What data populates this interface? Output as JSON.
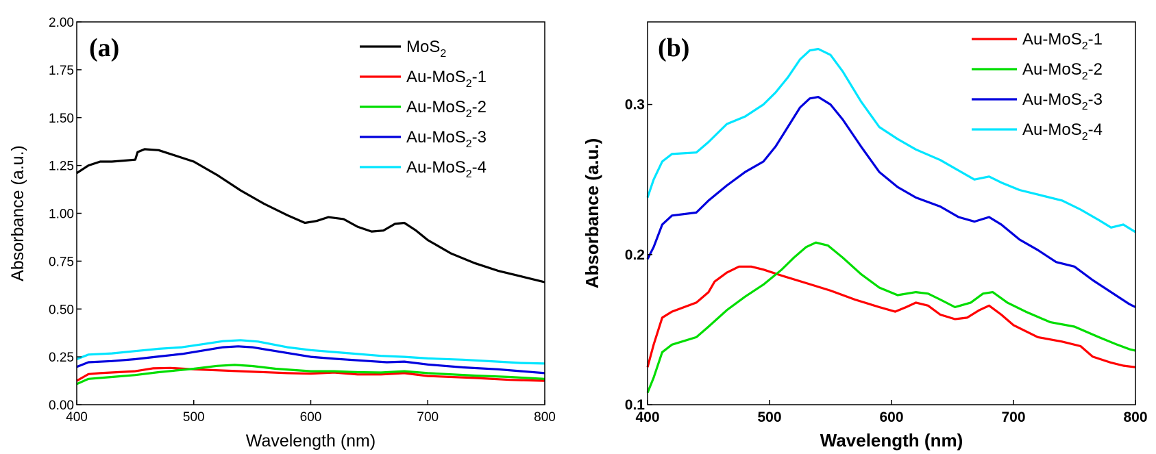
{
  "chart_data": [
    {
      "panel_label": "(a)",
      "type": "line",
      "xlabel": "Wavelength (nm)",
      "ylabel": "Absorbance (a.u.)",
      "xlim": [
        400,
        800
      ],
      "ylim": [
        0,
        2.0
      ],
      "x_ticks": [
        "400",
        "500",
        "600",
        "700",
        "800"
      ],
      "y_ticks": [
        "0.00",
        "0.25",
        "0.50",
        "0.75",
        "1.00",
        "1.25",
        "1.50",
        "1.75",
        "2.00"
      ],
      "legend_position": "top-right",
      "series": [
        {
          "name": "MoS",
          "sub": "2",
          "suffix": "",
          "color": "#000000",
          "points": [
            [
              400,
              1.21
            ],
            [
              410,
              1.25
            ],
            [
              420,
              1.27
            ],
            [
              430,
              1.27
            ],
            [
              440,
              1.275
            ],
            [
              450,
              1.28
            ],
            [
              452,
              1.32
            ],
            [
              458,
              1.335
            ],
            [
              470,
              1.33
            ],
            [
              485,
              1.3
            ],
            [
              500,
              1.27
            ],
            [
              520,
              1.2
            ],
            [
              540,
              1.12
            ],
            [
              560,
              1.05
            ],
            [
              580,
              0.99
            ],
            [
              595,
              0.95
            ],
            [
              605,
              0.96
            ],
            [
              615,
              0.98
            ],
            [
              628,
              0.97
            ],
            [
              640,
              0.93
            ],
            [
              652,
              0.905
            ],
            [
              662,
              0.91
            ],
            [
              672,
              0.945
            ],
            [
              680,
              0.95
            ],
            [
              690,
              0.91
            ],
            [
              700,
              0.86
            ],
            [
              720,
              0.79
            ],
            [
              740,
              0.74
            ],
            [
              760,
              0.7
            ],
            [
              780,
              0.67
            ],
            [
              800,
              0.64
            ]
          ]
        },
        {
          "name": "Au-MoS",
          "sub": "2",
          "suffix": "-1",
          "color": "#ff0000",
          "points": [
            [
              400,
              0.125
            ],
            [
              410,
              0.16
            ],
            [
              420,
              0.165
            ],
            [
              450,
              0.175
            ],
            [
              465,
              0.19
            ],
            [
              480,
              0.192
            ],
            [
              500,
              0.185
            ],
            [
              540,
              0.175
            ],
            [
              580,
              0.165
            ],
            [
              600,
              0.162
            ],
            [
              620,
              0.168
            ],
            [
              640,
              0.158
            ],
            [
              660,
              0.158
            ],
            [
              680,
              0.165
            ],
            [
              700,
              0.15
            ],
            [
              740,
              0.14
            ],
            [
              770,
              0.13
            ],
            [
              800,
              0.125
            ]
          ]
        },
        {
          "name": "Au-MoS",
          "sub": "2",
          "suffix": "-2",
          "color": "#00dd00",
          "points": [
            [
              400,
              0.108
            ],
            [
              410,
              0.135
            ],
            [
              430,
              0.145
            ],
            [
              450,
              0.155
            ],
            [
              470,
              0.17
            ],
            [
              500,
              0.188
            ],
            [
              520,
              0.203
            ],
            [
              535,
              0.208
            ],
            [
              550,
              0.202
            ],
            [
              570,
              0.188
            ],
            [
              600,
              0.175
            ],
            [
              620,
              0.175
            ],
            [
              640,
              0.17
            ],
            [
              660,
              0.168
            ],
            [
              680,
              0.175
            ],
            [
              700,
              0.165
            ],
            [
              740,
              0.152
            ],
            [
              770,
              0.145
            ],
            [
              800,
              0.135
            ]
          ]
        },
        {
          "name": "Au-MoS",
          "sub": "2",
          "suffix": "-3",
          "color": "#0000dd",
          "points": [
            [
              400,
              0.198
            ],
            [
              410,
              0.222
            ],
            [
              430,
              0.228
            ],
            [
              450,
              0.238
            ],
            [
              470,
              0.252
            ],
            [
              490,
              0.265
            ],
            [
              510,
              0.285
            ],
            [
              525,
              0.3
            ],
            [
              538,
              0.305
            ],
            [
              550,
              0.3
            ],
            [
              570,
              0.28
            ],
            [
              600,
              0.25
            ],
            [
              620,
              0.24
            ],
            [
              650,
              0.228
            ],
            [
              665,
              0.222
            ],
            [
              680,
              0.225
            ],
            [
              700,
              0.21
            ],
            [
              730,
              0.195
            ],
            [
              760,
              0.185
            ],
            [
              780,
              0.175
            ],
            [
              800,
              0.165
            ]
          ]
        },
        {
          "name": "Au-MoS",
          "sub": "2",
          "suffix": "-4",
          "color": "#00e5ff",
          "points": [
            [
              400,
              0.238
            ],
            [
              410,
              0.262
            ],
            [
              430,
              0.268
            ],
            [
              450,
              0.28
            ],
            [
              470,
              0.292
            ],
            [
              490,
              0.3
            ],
            [
              510,
              0.318
            ],
            [
              525,
              0.332
            ],
            [
              540,
              0.337
            ],
            [
              555,
              0.33
            ],
            [
              580,
              0.3
            ],
            [
              600,
              0.285
            ],
            [
              630,
              0.27
            ],
            [
              660,
              0.255
            ],
            [
              680,
              0.25
            ],
            [
              700,
              0.242
            ],
            [
              730,
              0.235
            ],
            [
              760,
              0.225
            ],
            [
              780,
              0.218
            ],
            [
              800,
              0.215
            ]
          ]
        }
      ]
    },
    {
      "panel_label": "(b)",
      "type": "line",
      "xlabel": "Wavelength (nm)",
      "ylabel": "Absorbance (a.u.)",
      "xlim": [
        400,
        800
      ],
      "ylim": [
        0.1,
        0.355
      ],
      "x_ticks": [
        "400",
        "500",
        "600",
        "700",
        "800"
      ],
      "y_ticks": [
        "0.1",
        "0.2",
        "0.3"
      ],
      "legend_position": "top-right",
      "series": [
        {
          "name": "Au-MoS",
          "sub": "2",
          "suffix": "-1",
          "color": "#ff0000",
          "points": [
            [
              400,
              0.125
            ],
            [
              405,
              0.14
            ],
            [
              412,
              0.158
            ],
            [
              420,
              0.162
            ],
            [
              440,
              0.168
            ],
            [
              450,
              0.175
            ],
            [
              455,
              0.182
            ],
            [
              465,
              0.188
            ],
            [
              475,
              0.192
            ],
            [
              485,
              0.192
            ],
            [
              495,
              0.19
            ],
            [
              510,
              0.186
            ],
            [
              530,
              0.181
            ],
            [
              550,
              0.176
            ],
            [
              570,
              0.17
            ],
            [
              590,
              0.165
            ],
            [
              603,
              0.162
            ],
            [
              612,
              0.165
            ],
            [
              620,
              0.168
            ],
            [
              630,
              0.166
            ],
            [
              640,
              0.16
            ],
            [
              652,
              0.157
            ],
            [
              662,
              0.158
            ],
            [
              672,
              0.163
            ],
            [
              680,
              0.166
            ],
            [
              690,
              0.16
            ],
            [
              700,
              0.153
            ],
            [
              720,
              0.145
            ],
            [
              740,
              0.142
            ],
            [
              755,
              0.139
            ],
            [
              765,
              0.132
            ],
            [
              780,
              0.128
            ],
            [
              790,
              0.126
            ],
            [
              800,
              0.125
            ]
          ]
        },
        {
          "name": "Au-MoS",
          "sub": "2",
          "suffix": "-2",
          "color": "#00dd00",
          "points": [
            [
              400,
              0.108
            ],
            [
              405,
              0.118
            ],
            [
              412,
              0.135
            ],
            [
              420,
              0.14
            ],
            [
              440,
              0.145
            ],
            [
              450,
              0.152
            ],
            [
              465,
              0.163
            ],
            [
              480,
              0.172
            ],
            [
              495,
              0.18
            ],
            [
              510,
              0.19
            ],
            [
              520,
              0.198
            ],
            [
              530,
              0.205
            ],
            [
              538,
              0.208
            ],
            [
              548,
              0.206
            ],
            [
              560,
              0.198
            ],
            [
              575,
              0.187
            ],
            [
              590,
              0.178
            ],
            [
              605,
              0.173
            ],
            [
              620,
              0.175
            ],
            [
              630,
              0.174
            ],
            [
              640,
              0.17
            ],
            [
              652,
              0.165
            ],
            [
              665,
              0.168
            ],
            [
              675,
              0.174
            ],
            [
              683,
              0.175
            ],
            [
              695,
              0.168
            ],
            [
              710,
              0.162
            ],
            [
              730,
              0.155
            ],
            [
              750,
              0.152
            ],
            [
              770,
              0.145
            ],
            [
              785,
              0.14
            ],
            [
              795,
              0.137
            ],
            [
              800,
              0.136
            ]
          ]
        },
        {
          "name": "Au-MoS",
          "sub": "2",
          "suffix": "-3",
          "color": "#0000dd",
          "points": [
            [
              400,
              0.197
            ],
            [
              405,
              0.205
            ],
            [
              412,
              0.22
            ],
            [
              420,
              0.226
            ],
            [
              440,
              0.228
            ],
            [
              450,
              0.236
            ],
            [
              465,
              0.246
            ],
            [
              480,
              0.255
            ],
            [
              495,
              0.262
            ],
            [
              505,
              0.272
            ],
            [
              515,
              0.285
            ],
            [
              525,
              0.298
            ],
            [
              533,
              0.304
            ],
            [
              540,
              0.305
            ],
            [
              550,
              0.3
            ],
            [
              560,
              0.29
            ],
            [
              575,
              0.272
            ],
            [
              590,
              0.255
            ],
            [
              605,
              0.245
            ],
            [
              620,
              0.238
            ],
            [
              640,
              0.232
            ],
            [
              655,
              0.225
            ],
            [
              668,
              0.222
            ],
            [
              680,
              0.225
            ],
            [
              690,
              0.22
            ],
            [
              705,
              0.21
            ],
            [
              720,
              0.203
            ],
            [
              735,
              0.195
            ],
            [
              750,
              0.192
            ],
            [
              765,
              0.183
            ],
            [
              780,
              0.175
            ],
            [
              795,
              0.167
            ],
            [
              800,
              0.165
            ]
          ]
        },
        {
          "name": "Au-MoS",
          "sub": "2",
          "suffix": "-4",
          "color": "#00e5ff",
          "points": [
            [
              400,
              0.238
            ],
            [
              405,
              0.25
            ],
            [
              412,
              0.262
            ],
            [
              420,
              0.267
            ],
            [
              440,
              0.268
            ],
            [
              450,
              0.275
            ],
            [
              465,
              0.287
            ],
            [
              480,
              0.292
            ],
            [
              495,
              0.3
            ],
            [
              505,
              0.308
            ],
            [
              515,
              0.318
            ],
            [
              525,
              0.33
            ],
            [
              533,
              0.336
            ],
            [
              540,
              0.337
            ],
            [
              550,
              0.333
            ],
            [
              560,
              0.322
            ],
            [
              575,
              0.302
            ],
            [
              590,
              0.285
            ],
            [
              605,
              0.277
            ],
            [
              620,
              0.27
            ],
            [
              640,
              0.263
            ],
            [
              655,
              0.256
            ],
            [
              668,
              0.25
            ],
            [
              680,
              0.252
            ],
            [
              690,
              0.248
            ],
            [
              705,
              0.243
            ],
            [
              720,
              0.24
            ],
            [
              740,
              0.236
            ],
            [
              755,
              0.23
            ],
            [
              770,
              0.223
            ],
            [
              780,
              0.218
            ],
            [
              790,
              0.22
            ],
            [
              800,
              0.215
            ]
          ]
        }
      ]
    }
  ]
}
